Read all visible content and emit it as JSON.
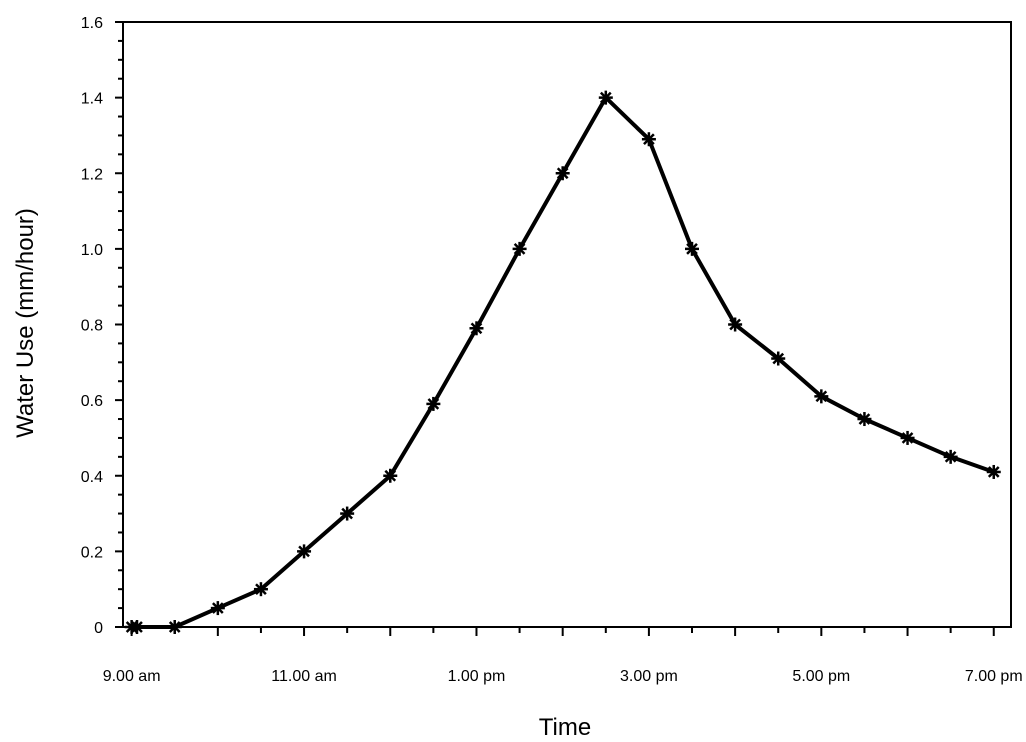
{
  "chart_data": {
    "type": "line",
    "title": "",
    "xlabel": "Time",
    "ylabel": "Water Use (mm/hour)",
    "ylim": [
      0,
      1.6
    ],
    "y_ticks": [
      "0",
      "0.2",
      "0.4",
      "0.6",
      "0.8",
      "1.0",
      "1.2",
      "1.4",
      "1.6"
    ],
    "x_tick_hours": [
      9,
      11,
      13,
      15,
      17,
      19
    ],
    "x_tick_labels": [
      "9.00 am",
      "11.00 am",
      "1.00 pm",
      "3.00 pm",
      "5.00 pm",
      "7.00 pm"
    ],
    "xlim_hours": [
      8.9,
      19.2
    ],
    "grid": false,
    "marker": "star",
    "line_color": "#000000",
    "series": [
      {
        "x_hours": [
          8.5,
          9.0,
          9.5,
          10.0,
          10.5,
          11.0,
          11.5,
          12.0,
          12.5,
          13.0,
          13.5,
          14.0,
          14.5,
          15.0,
          15.5,
          16.0,
          16.5,
          17.0,
          17.5,
          18.0,
          18.5,
          19.0
        ],
        "values": [
          0,
          0,
          0,
          0.05,
          0.1,
          0.2,
          0.3,
          0.4,
          0.59,
          0.79,
          1.0,
          1.2,
          1.4,
          1.29,
          1.0,
          0.8,
          0.71,
          0.61,
          0.55,
          0.5,
          0.45,
          0.41
        ]
      }
    ]
  }
}
